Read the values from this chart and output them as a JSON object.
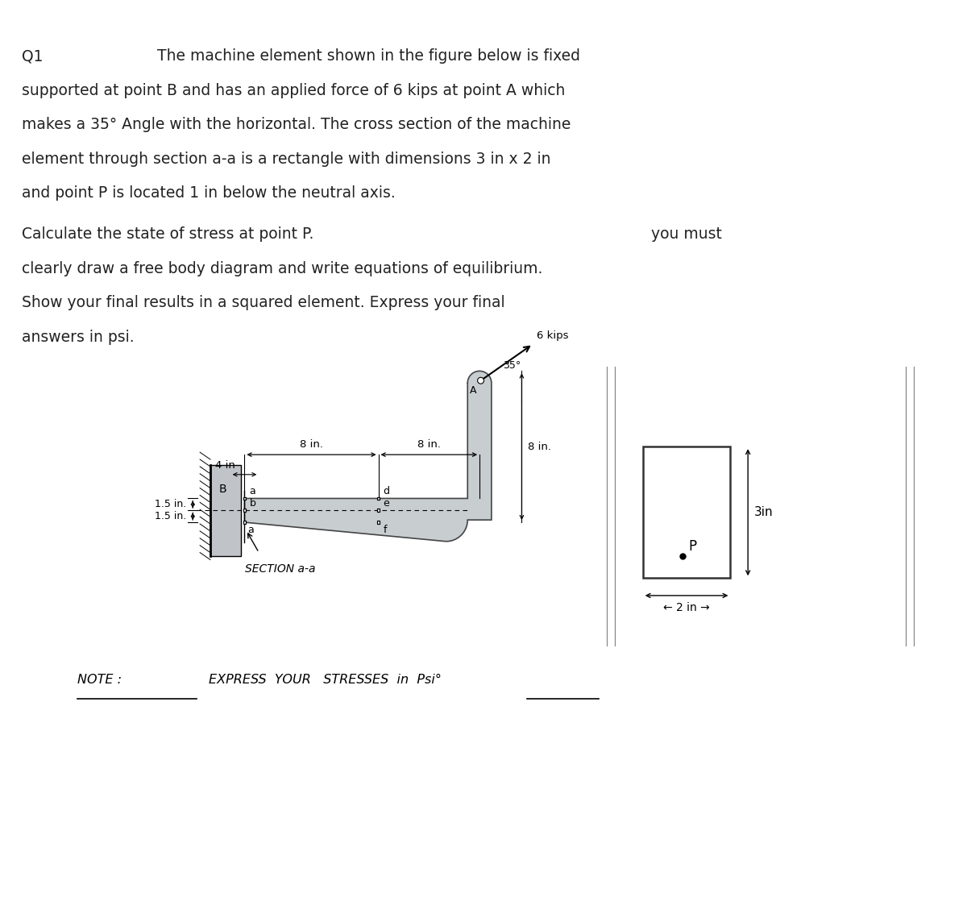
{
  "bg_color": "#ffffff",
  "fig_width": 12.0,
  "fig_height": 11.44,
  "text_color": "#222222",
  "line1": "Q1",
  "line1b": "The machine element shown in the figure below is fixed",
  "line2": "supported at point B and has an applied force of 6 kips at point A which",
  "line3": "makes a 35° Angle with the horizontal. The cross section of the machine",
  "line4": "element through section a-a is a rectangle with dimensions 3 in x 2 in",
  "line5": "and point P is located 1 in below the neutral axis.",
  "line6": "Calculate the state of stress at point P.",
  "line6b": "you must",
  "line7": "clearly draw a free body diagram and write equations of equilibrium.",
  "line8": "Show your final results in a squared element. Express your final",
  "line9": "answers in psi.",
  "note_left": "NOTE :",
  "note_right": "EXPRESS  YOUR   STRESSES  in  Psi°",
  "section_label": "SECTION a-a",
  "dim_8in_1": "8 in.",
  "dim_8in_2": "8 in.",
  "dim_8in_vert": "8 in.",
  "dim_4in": "4 in",
  "dim_15a": "1.5 in.",
  "dim_15b": "1.5 in.",
  "dim_3in": "3in",
  "dim_2in": "← 2 in →",
  "force_label": "6 kips",
  "angle_label": "35°",
  "gray_fill": "#c8cdd0",
  "gray_wall": "#c0c4c8"
}
